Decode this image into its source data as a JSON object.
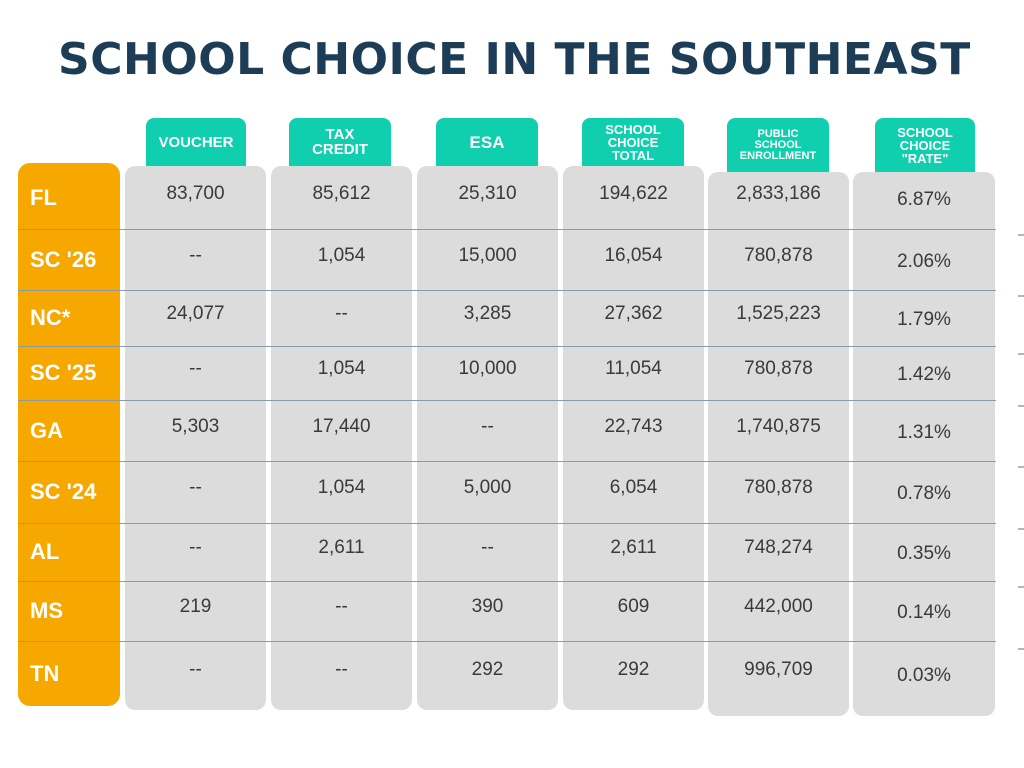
{
  "title": "SCHOOL CHOICE IN THE SOUTHEAST",
  "chart_data": {
    "type": "table",
    "title": "SCHOOL CHOICE IN THE SOUTHEAST",
    "columns": [
      "VOUCHER",
      "TAX CREDIT",
      "ESA",
      "SCHOOL CHOICE TOTAL",
      "PUBLIC SCHOOL ENROLLMENT",
      "SCHOOL CHOICE \"RATE\""
    ],
    "column_header_lines": [
      [
        "VOUCHER"
      ],
      [
        "TAX",
        "CREDIT"
      ],
      [
        "ESA"
      ],
      [
        "SCHOOL",
        "CHOICE",
        "TOTAL"
      ],
      [
        "PUBLIC",
        "SCHOOL",
        "ENROLLMENT"
      ],
      [
        "SCHOOL",
        "CHOICE",
        "\"RATE\""
      ]
    ],
    "rows": [
      {
        "state": "FL",
        "values": [
          "83,700",
          "85,612",
          "25,310",
          "194,622",
          "2,833,186",
          "6.87%"
        ]
      },
      {
        "state": "SC '26",
        "values": [
          "--",
          "1,054",
          "15,000",
          "16,054",
          "780,878",
          "2.06%"
        ]
      },
      {
        "state": "NC*",
        "values": [
          "24,077",
          "--",
          "3,285",
          "27,362",
          "1,525,223",
          "1.79%"
        ]
      },
      {
        "state": "SC '25",
        "values": [
          "--",
          "1,054",
          "10,000",
          "11,054",
          "780,878",
          "1.42%"
        ]
      },
      {
        "state": "GA",
        "values": [
          "5,303",
          "17,440",
          "--",
          "22,743",
          "1,740,875",
          "1.31%"
        ]
      },
      {
        "state": "SC '24",
        "values": [
          "--",
          "1,054",
          "5,000",
          "6,054",
          "780,878",
          "0.78%"
        ]
      },
      {
        "state": "AL",
        "values": [
          "--",
          "2,611",
          "--",
          "2,611",
          "748,274",
          "0.35%"
        ]
      },
      {
        "state": "MS",
        "values": [
          "219",
          "--",
          "390",
          "609",
          "442,000",
          "0.14%"
        ]
      },
      {
        "state": "TN",
        "values": [
          "--",
          "--",
          "292",
          "292",
          "996,709",
          "0.03%"
        ]
      }
    ]
  },
  "colors": {
    "title": "#1d3d57",
    "header": "#0fcfae",
    "state_column": "#f6a800",
    "cell_background": "#dcdcdc",
    "separator": "#8a9aa6",
    "text": "#3a3a3a"
  }
}
